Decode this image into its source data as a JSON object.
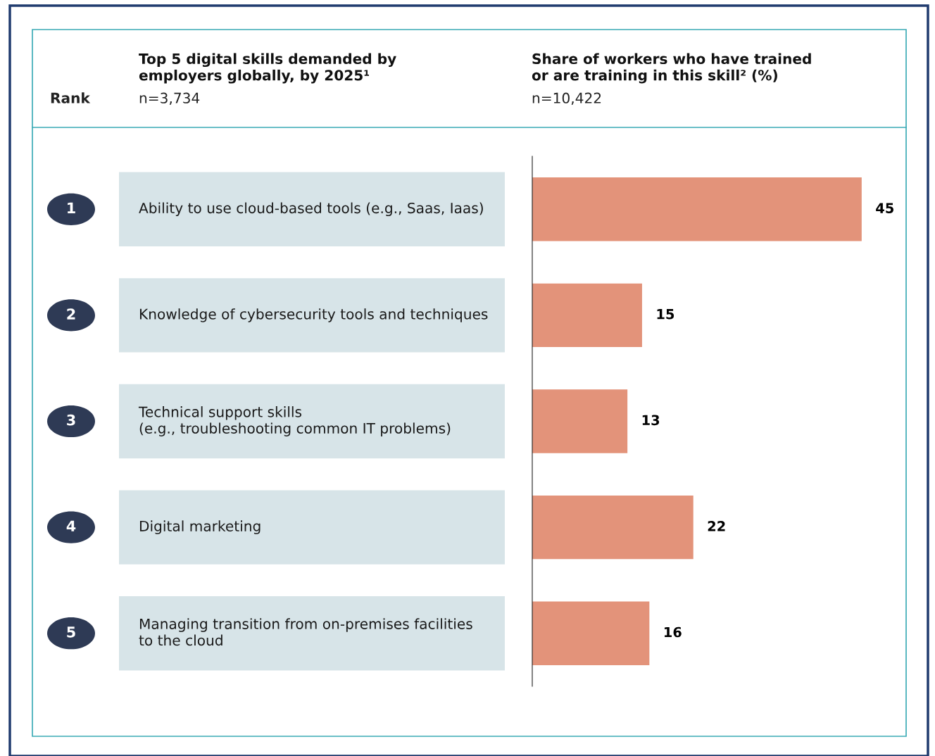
{
  "chart_data": {
    "type": "bar",
    "orientation": "horizontal",
    "title": "Top 5 digital skills demanded by\nemployers globally, by 2025¹",
    "subtitle": "Share of workers who have trained\nor are training in this skill² (%)",
    "categories": [
      "Ability to use cloud-based tools (e.g., Saas, Iaas)",
      "Knowledge of cybersecurity tools and techniques",
      "Technical support skills\n(e.g., troubleshooting common IT problems)",
      "Digital marketing",
      "Managing transition from on-premises facilities\nto the cloud"
    ],
    "values": [
      45,
      15,
      13,
      22,
      16
    ],
    "color": "#e3937a",
    "data_labels": true,
    "annotations": [
      "Rank",
      "n=3,734",
      "n=10,422",
      "1",
      "2",
      "3",
      "4",
      "5"
    ]
  }
}
